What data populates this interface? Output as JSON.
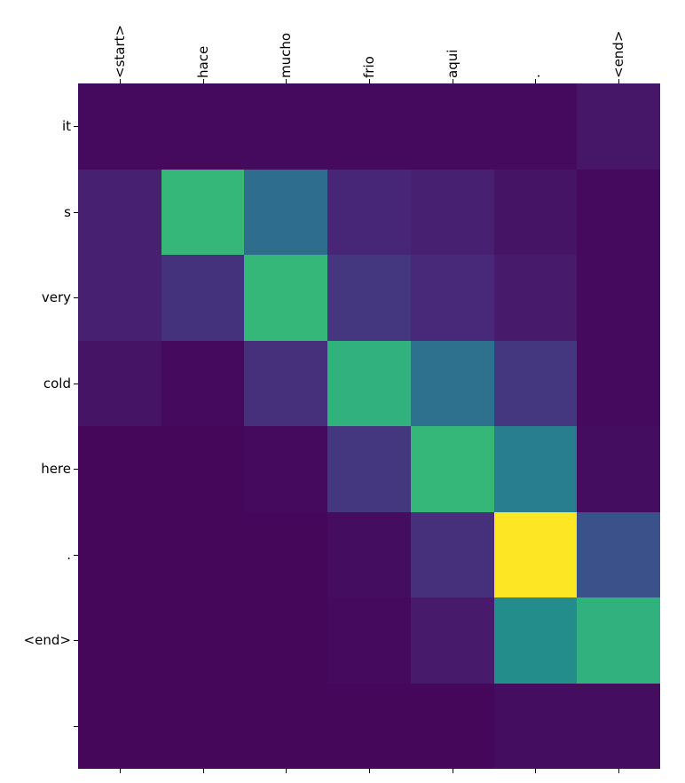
{
  "chart_data": {
    "type": "heatmap",
    "title": "",
    "xlabel": "",
    "ylabel": "",
    "colormap": "viridis",
    "value_range": [
      0,
      1
    ],
    "x_axis_position": "top",
    "x_tick_labels": [
      "<start>",
      "hace",
      "mucho",
      "frio",
      "aqui",
      ".",
      "<end>"
    ],
    "y_tick_labels": [
      "it",
      "s",
      "very",
      "cold",
      "here",
      ".",
      "<end>",
      ""
    ],
    "values": [
      [
        0.03,
        0.03,
        0.03,
        0.03,
        0.03,
        0.03,
        0.07
      ],
      [
        0.1,
        0.75,
        0.4,
        0.12,
        0.1,
        0.06,
        0.03
      ],
      [
        0.1,
        0.16,
        0.75,
        0.18,
        0.13,
        0.08,
        0.03
      ],
      [
        0.06,
        0.03,
        0.15,
        0.72,
        0.42,
        0.18,
        0.03
      ],
      [
        0.02,
        0.02,
        0.03,
        0.18,
        0.75,
        0.48,
        0.04
      ],
      [
        0.02,
        0.02,
        0.02,
        0.04,
        0.15,
        1.0,
        0.28
      ],
      [
        0.02,
        0.02,
        0.02,
        0.03,
        0.08,
        0.55,
        0.72
      ],
      [
        0.02,
        0.02,
        0.02,
        0.02,
        0.02,
        0.04,
        0.04
      ]
    ]
  }
}
